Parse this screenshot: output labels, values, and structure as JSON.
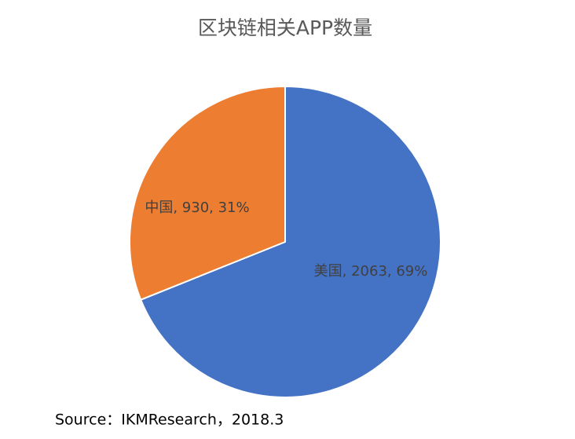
{
  "chart_data": {
    "type": "pie",
    "title": "区块链相关APP数量",
    "categories": [
      "美国",
      "中国"
    ],
    "values": [
      2063,
      930
    ],
    "value_labels": [
      "美国, 2063, 69%",
      "中国, 930, 31%"
    ],
    "colors": [
      "#4472c4",
      "#ed7d31"
    ],
    "source": "Source：IKMResearch，2018.3"
  }
}
